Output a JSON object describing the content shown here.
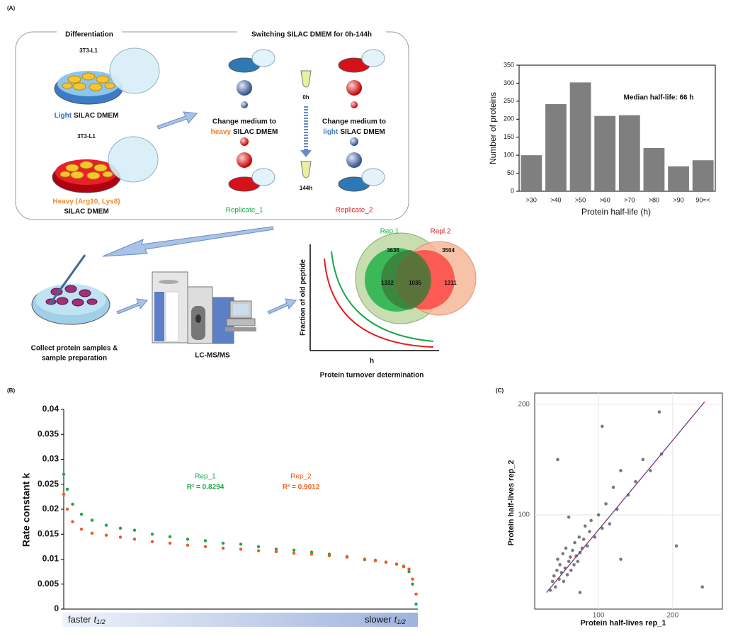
{
  "panel_a": {
    "label": "(A)",
    "differentiation": "Differentiation",
    "switching": "Switching SILAC DMEM for 0h-144h",
    "cell_line_1": "3T3-L1",
    "cell_line_2": "3T3-L1",
    "light_word": "Light",
    "light_rest": "SILAC DMEM",
    "heavy_line1": "Heavy (Arg10, Lys8)",
    "heavy_line2": "SILAC DMEM",
    "change_1a": "Change medium to",
    "change_1b_word": "heavy",
    "change_1b_rest": "SILAC DMEM",
    "change_2a": "Change medium to",
    "change_2b_word": "light",
    "change_2b_rest": "SILAC DMEM",
    "time_start": "0h",
    "time_end": "144h",
    "replicate_1": "Replicate_1",
    "replicate_2": "Replicate_2",
    "collect_1": "Collect protein samples &",
    "collect_2": "sample preparation",
    "lcms": "LC-MS/MS",
    "decay_ylabel": "Fraction of old peptide",
    "decay_xlabel": "h",
    "turnover": "Protein turnover determination",
    "venn": {
      "rep1": "Rep.1",
      "rep2": "Repl.2",
      "only1": "3636",
      "only2": "3504",
      "mid1": "1332",
      "core": "1035",
      "mid2": "1311"
    }
  },
  "panel_b_label": "(B)",
  "panel_c_label": "(C)",
  "chart_data": [
    {
      "type": "bar",
      "categories": [
        ">30",
        ">40",
        ">50",
        ">60",
        ">70",
        ">80",
        ">90",
        "90=<"
      ],
      "values": [
        100,
        242,
        302,
        209,
        211,
        120,
        69,
        86
      ],
      "color": "#7f7f7f",
      "ylim": [
        0,
        350
      ],
      "yticks": [
        0,
        50,
        100,
        150,
        200,
        250,
        300,
        350
      ],
      "x_label": "Protein half-life (h)",
      "y_label": "Number of proteins",
      "annotation": "Median half-life: 66 h"
    },
    {
      "type": "scatter",
      "x": [
        0,
        10,
        25,
        50,
        80,
        120,
        160,
        200,
        250,
        300,
        350,
        400,
        450,
        500,
        550,
        600,
        650,
        700,
        750,
        800,
        850,
        880,
        910,
        940,
        960,
        975,
        985,
        995
      ],
      "xlim": [
        0,
        1000
      ],
      "series": [
        {
          "name": "Rep_1",
          "color": "#1aa84a",
          "r2": "R² = 0.8294",
          "values": [
            0.027,
            0.024,
            0.021,
            0.019,
            0.0178,
            0.0168,
            0.0162,
            0.0158,
            0.015,
            0.0145,
            0.014,
            0.0137,
            0.0132,
            0.013,
            0.0125,
            0.012,
            0.0118,
            0.0114,
            0.011,
            0.0105,
            0.0099,
            0.0097,
            0.0094,
            0.009,
            0.0085,
            0.0075,
            0.005,
            0.001
          ]
        },
        {
          "name": "Rep_2",
          "color": "#f05a1e",
          "r2": "R² = 0.9012",
          "values": [
            0.023,
            0.02,
            0.0175,
            0.016,
            0.0152,
            0.0148,
            0.0144,
            0.014,
            0.0135,
            0.0132,
            0.0128,
            0.0125,
            0.0122,
            0.012,
            0.0117,
            0.0115,
            0.0112,
            0.011,
            0.0107,
            0.0104,
            0.01,
            0.0098,
            0.0094,
            0.009,
            0.0086,
            0.008,
            0.006,
            0.003
          ]
        }
      ],
      "ylim": [
        0,
        0.04
      ],
      "yticks": [
        0,
        0.005,
        0.01,
        0.015,
        0.02,
        0.025,
        0.03,
        0.035,
        0.04
      ],
      "y_label": "Rate constant k",
      "faster": "faster",
      "slower": "slower",
      "t_symbol": "t",
      "t_sub": "1/2"
    },
    {
      "type": "scatter",
      "x": [
        35,
        38,
        40,
        42,
        44,
        45,
        47,
        48,
        50,
        52,
        53,
        55,
        56,
        58,
        60,
        62,
        63,
        65,
        67,
        68,
        70,
        72,
        74,
        75,
        78,
        80,
        82,
        85,
        88,
        90,
        95,
        100,
        105,
        110,
        115,
        120,
        125,
        130,
        140,
        150,
        160,
        170,
        185,
        45,
        60,
        75,
        205,
        240,
        105,
        182,
        130
      ],
      "values": [
        32,
        40,
        45,
        35,
        50,
        60,
        42,
        55,
        48,
        65,
        40,
        52,
        70,
        46,
        58,
        62,
        50,
        68,
        55,
        75,
        63,
        58,
        80,
        66,
        70,
        78,
        90,
        72,
        85,
        95,
        80,
        100,
        88,
        110,
        92,
        125,
        105,
        140,
        118,
        130,
        150,
        140,
        155,
        150,
        98,
        30,
        72,
        35,
        180,
        193,
        60
      ],
      "color": "#333333",
      "xlim": [
        14,
        267
      ],
      "ylim": [
        15,
        210
      ],
      "xticks": [
        100,
        200
      ],
      "yticks": [
        100,
        200
      ],
      "fit_line": {
        "x": [
          30,
          243
        ],
        "y": [
          30,
          202
        ]
      },
      "x_label": "Protein half-lives rep_1",
      "y_label": "Protein half-lives rep_2"
    }
  ]
}
